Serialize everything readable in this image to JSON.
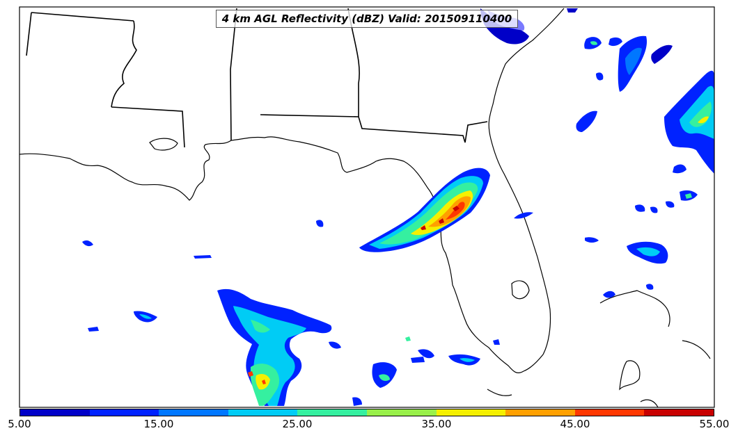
{
  "title": "4 km AGL Reflectivity (dBZ) Valid: 201509110400",
  "colorbar": {
    "colors": [
      "#0000c8",
      "#0022ff",
      "#0077ff",
      "#00ccf5",
      "#35f0a0",
      "#99f04a",
      "#f5f000",
      "#ffa000",
      "#ff3800",
      "#c80000"
    ],
    "tick_labels": [
      "5.00",
      "15.00",
      "25.00",
      "35.00",
      "45.00",
      "55.00"
    ]
  },
  "chart_data": {
    "type": "heatmap",
    "title": "4 km AGL Reflectivity (dBZ) Valid: 201509110400",
    "variable": "reflectivity",
    "units": "dBZ",
    "range": [
      5,
      55
    ],
    "colorbar_ticks": [
      5,
      15,
      25,
      35,
      45,
      55
    ],
    "region": "Gulf of Mexico / Southeastern US",
    "valid_time": "201509110400"
  }
}
